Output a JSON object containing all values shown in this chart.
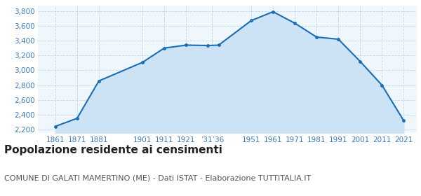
{
  "years": [
    1861,
    1871,
    1881,
    1901,
    1911,
    1921,
    1931,
    1936,
    1951,
    1961,
    1971,
    1981,
    1991,
    2001,
    2011,
    2021
  ],
  "population": [
    2243,
    2352,
    2857,
    3107,
    3300,
    3340,
    3335,
    3340,
    3672,
    3791,
    3636,
    3449,
    3420,
    3120,
    2800,
    2320
  ],
  "xtick_positions": [
    1861,
    1871,
    1881,
    1901,
    1911,
    1921,
    1933,
    1951,
    1961,
    1971,
    1981,
    1991,
    2001,
    2011,
    2021
  ],
  "xtick_labels": [
    "1861",
    "1871",
    "1881",
    "1901",
    "1911",
    "1921",
    "’31’36",
    "1951",
    "1961",
    "1971",
    "1981",
    "1991",
    "2001",
    "2011",
    "2021"
  ],
  "ytick_values": [
    2200,
    2400,
    2600,
    2800,
    3000,
    3200,
    3400,
    3600,
    3800
  ],
  "ylim": [
    2150,
    3870
  ],
  "xlim": [
    1853,
    2027
  ],
  "line_color": "#1a6eb5",
  "fill_color": "#cce3f5",
  "marker_color": "#1a6eb5",
  "bg_color": "#f0f7fc",
  "grid_color": "#c0d8ea",
  "title": "Popolazione residente ai censimenti",
  "subtitle": "COMUNE DI GALATI MAMERTINO (ME) - Dati ISTAT - Elaborazione TUTTITALIA.IT",
  "title_fontsize": 11,
  "subtitle_fontsize": 8,
  "title_color": "#222222",
  "subtitle_color": "#555555",
  "tick_label_color": "#3a7abf",
  "tick_label_fontsize": 7.5,
  "line_width": 1.5,
  "marker_size": 3.5
}
